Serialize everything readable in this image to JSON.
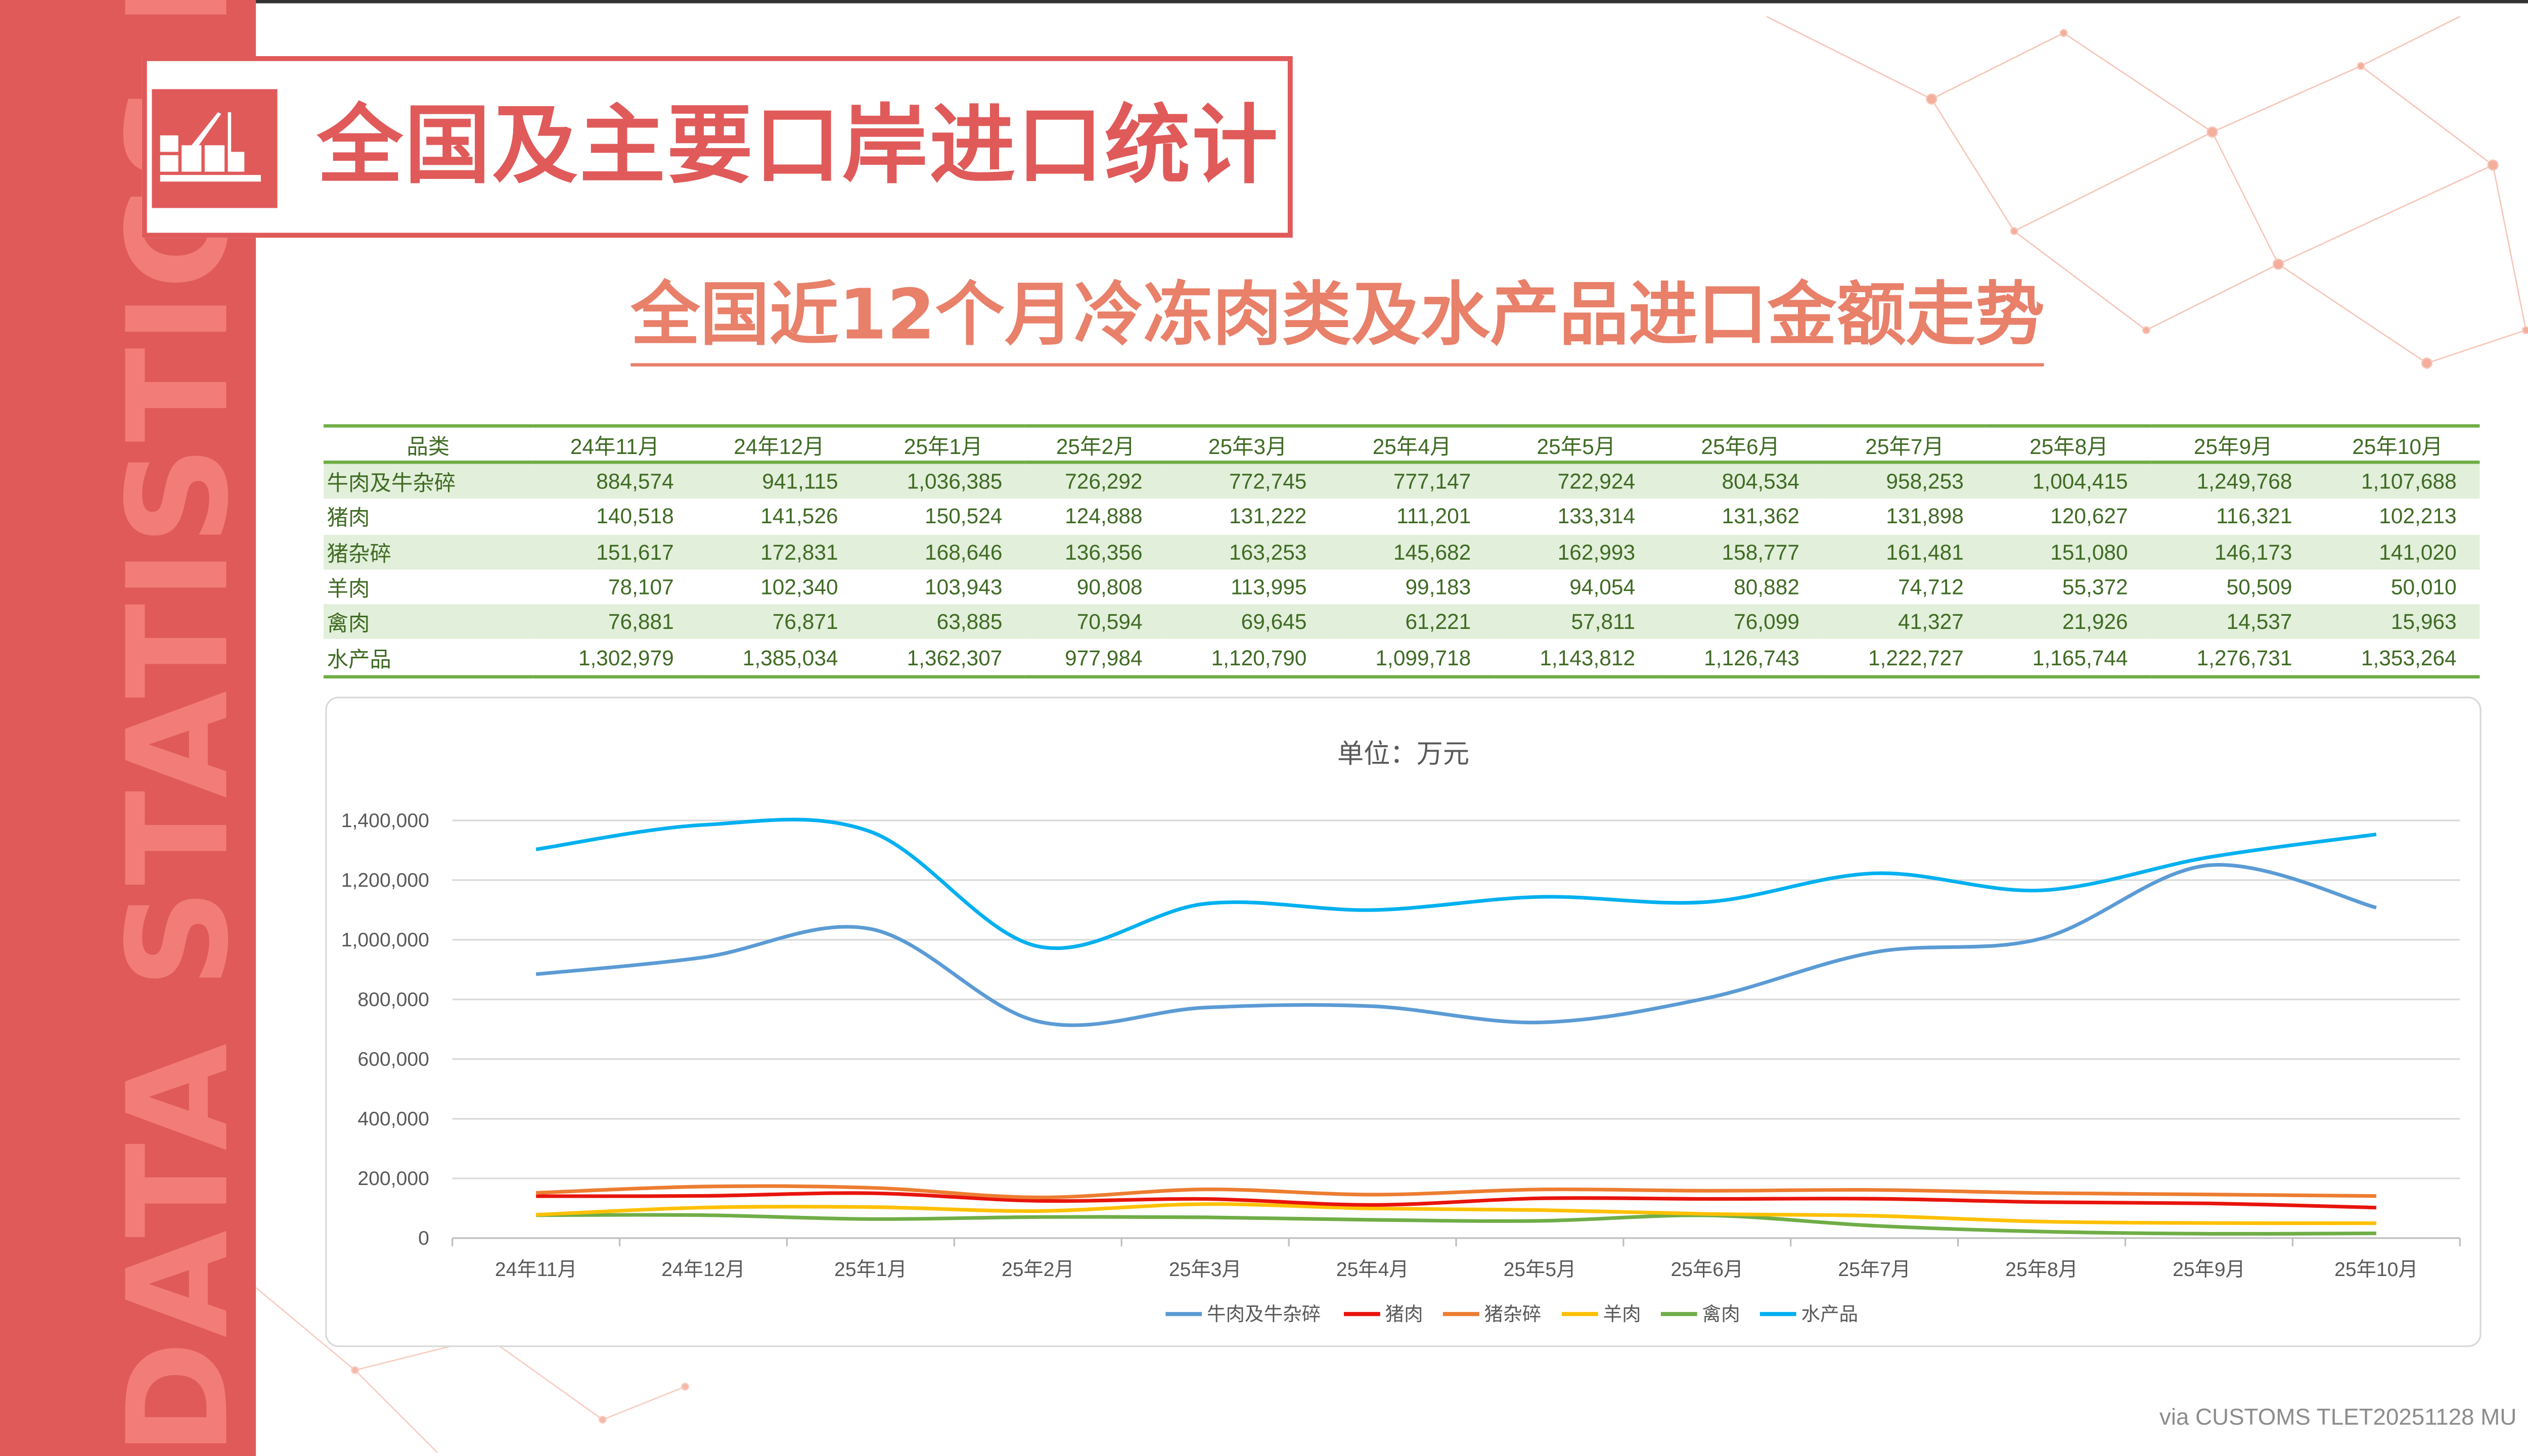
{
  "side_text": "DATA STATISTICS REPORT",
  "header": {
    "title": "全国及主要口岸进口统计",
    "icon": "crane-cargo-icon"
  },
  "subtitle": "全国近12个月冷冻肉类及水产品进口金额走势",
  "credit": "via CUSTOMS TLET20251128 MU",
  "table": {
    "header": [
      "品类",
      "24年11月",
      "24年12月",
      "25年1月",
      "25年2月",
      "25年3月",
      "25年4月",
      "25年5月",
      "25年6月",
      "25年7月",
      "25年8月",
      "25年9月",
      "25年10月"
    ],
    "rows": [
      [
        "牛肉及牛杂碎",
        "884,574",
        "941,115",
        "1,036,385",
        "726,292",
        "772,745",
        "777,147",
        "722,924",
        "804,534",
        "958,253",
        "1,004,415",
        "1,249,768",
        "1,107,688"
      ],
      [
        "猪肉",
        "140,518",
        "141,526",
        "150,524",
        "124,888",
        "131,222",
        "111,201",
        "133,314",
        "131,362",
        "131,898",
        "120,627",
        "116,321",
        "102,213"
      ],
      [
        "猪杂碎",
        "151,617",
        "172,831",
        "168,646",
        "136,356",
        "163,253",
        "145,682",
        "162,993",
        "158,777",
        "161,481",
        "151,080",
        "146,173",
        "141,020"
      ],
      [
        "羊肉",
        "78,107",
        "102,340",
        "103,943",
        "90,808",
        "113,995",
        "99,183",
        "94,054",
        "80,882",
        "74,712",
        "55,372",
        "50,509",
        "50,010"
      ],
      [
        "禽肉",
        "76,881",
        "76,871",
        "63,885",
        "70,594",
        "69,645",
        "61,221",
        "57,811",
        "76,099",
        "41,327",
        "21,926",
        "14,537",
        "15,963"
      ],
      [
        "水产品",
        "1,302,979",
        "1,385,034",
        "1,362,307",
        "977,984",
        "1,120,790",
        "1,099,718",
        "1,143,812",
        "1,126,743",
        "1,222,727",
        "1,165,744",
        "1,276,731",
        "1,353,264"
      ]
    ]
  },
  "chart_data": {
    "type": "line",
    "title": "单位：万元",
    "xlabel": "",
    "ylabel": "",
    "ylim": [
      0,
      1400000
    ],
    "yticks": [
      0,
      200000,
      400000,
      600000,
      800000,
      1000000,
      1200000,
      1400000
    ],
    "ytick_labels": [
      "0",
      "200,000",
      "400,000",
      "600,000",
      "800,000",
      "1,000,000",
      "1,200,000",
      "1,400,000"
    ],
    "grid": true,
    "smooth": true,
    "legend_position": "bottom",
    "categories": [
      "24年11月",
      "24年12月",
      "25年1月",
      "25年2月",
      "25年3月",
      "25年4月",
      "25年5月",
      "25年6月",
      "25年7月",
      "25年8月",
      "25年9月",
      "25年10月"
    ],
    "series": [
      {
        "name": "牛肉及牛杂碎",
        "color": "#5b9bd5",
        "values": [
          884574,
          941115,
          1036385,
          726292,
          772745,
          777147,
          722924,
          804534,
          958253,
          1004415,
          1249768,
          1107688
        ]
      },
      {
        "name": "猪肉",
        "color": "#e8140c",
        "values": [
          140518,
          141526,
          150524,
          124888,
          131222,
          111201,
          133314,
          131362,
          131898,
          120627,
          116321,
          102213
        ]
      },
      {
        "name": "猪杂碎",
        "color": "#ed7d31",
        "values": [
          151617,
          172831,
          168646,
          136356,
          163253,
          145682,
          162993,
          158777,
          161481,
          151080,
          146173,
          141020
        ]
      },
      {
        "name": "羊肉",
        "color": "#ffc000",
        "values": [
          78107,
          102340,
          103943,
          90808,
          113995,
          99183,
          94054,
          80882,
          74712,
          55372,
          50509,
          50010
        ]
      },
      {
        "name": "禽肉",
        "color": "#70ad47",
        "values": [
          76881,
          76871,
          63885,
          70594,
          69645,
          61221,
          57811,
          76099,
          41327,
          21926,
          14537,
          15963
        ]
      },
      {
        "name": "水产品",
        "color": "#00b0f0",
        "values": [
          1302979,
          1385034,
          1362307,
          977984,
          1120790,
          1099718,
          1143812,
          1126743,
          1222727,
          1165744,
          1276731,
          1353264
        ]
      }
    ]
  },
  "colors": {
    "brand": "#e05a5a",
    "subtitle": "#e8806a",
    "table_text": "#3f6b24",
    "table_rule": "#70ad47",
    "table_band": "#e2efda"
  }
}
